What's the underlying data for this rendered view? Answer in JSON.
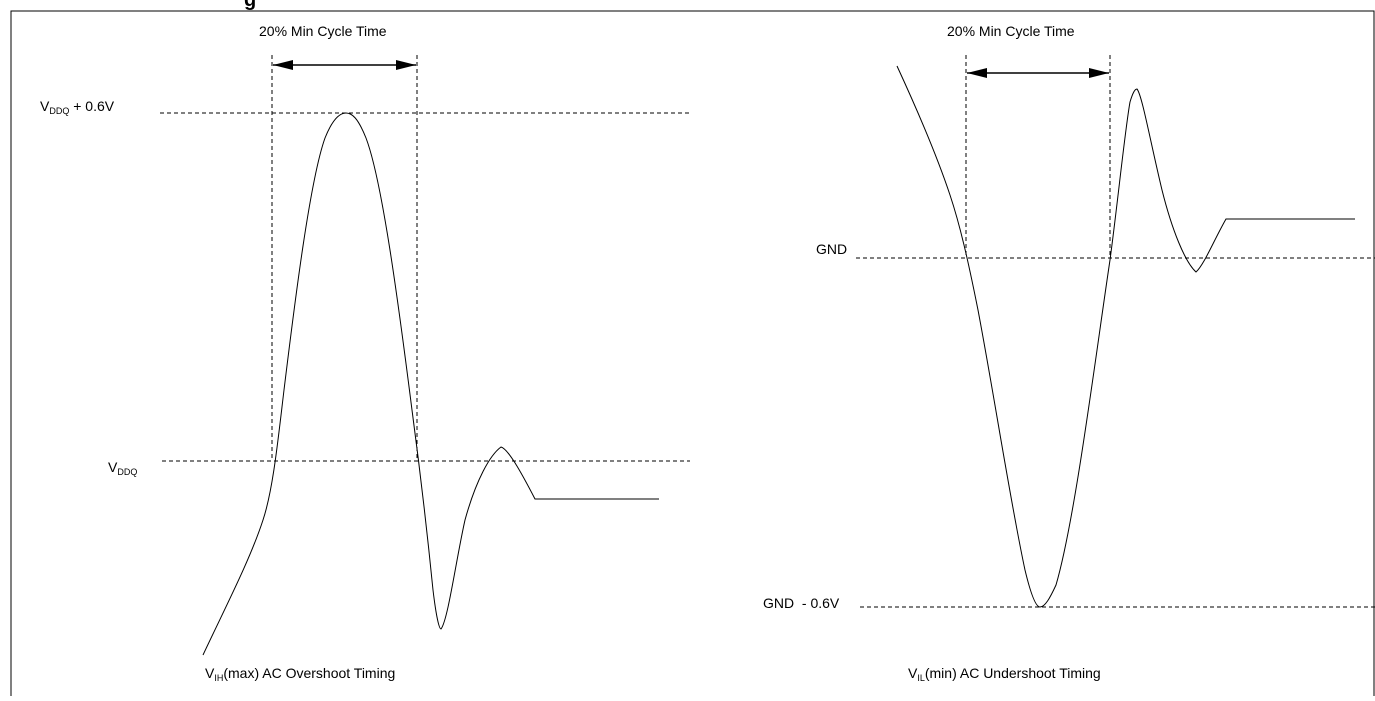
{
  "header": {
    "title_fragment": "g"
  },
  "overshoot": {
    "dimension_label": "20% Min Cycle Time",
    "upper_level_main": "V",
    "upper_level_sub": "DDQ",
    "upper_level_suffix": " + 0.6V",
    "lower_level_main": "V",
    "lower_level_sub": "DDQ",
    "caption_main": "V",
    "caption_sub": "IH",
    "caption_suffix": "(max) AC Overshoot Timing"
  },
  "undershoot": {
    "dimension_label": "20% Min Cycle Time",
    "upper_level": "GND",
    "lower_level": "GND  - 0.6V",
    "caption_main": "V",
    "caption_sub": "IL",
    "caption_suffix": "(min) AC Undershoot Timing"
  }
}
